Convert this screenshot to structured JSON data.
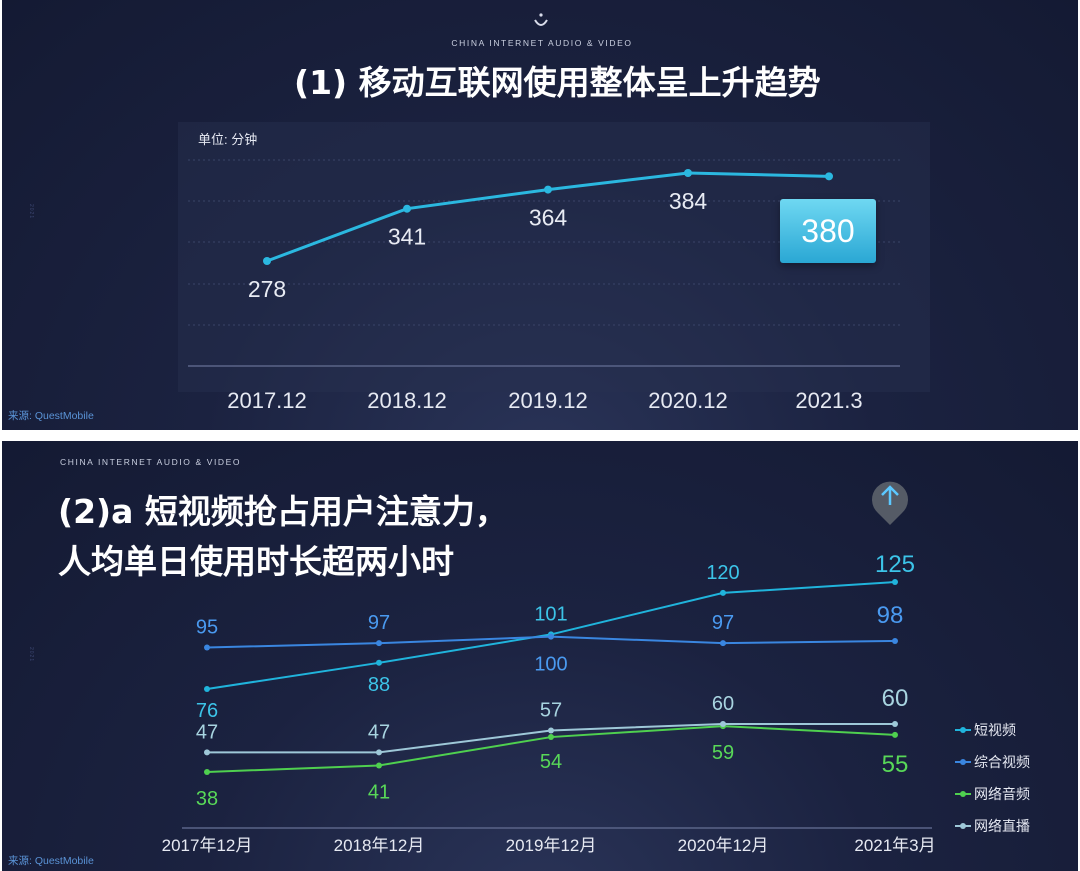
{
  "panel1": {
    "brand": "CHINA INTERNET AUDIO & VIDEO",
    "title": "(1) 移动互联网使用整体呈上升趋势",
    "source": "来源: QuestMobile",
    "side_mark": "2021",
    "chart_data": {
      "type": "line",
      "unit_label": "单位: 分钟",
      "categories": [
        "2017.12",
        "2018.12",
        "2019.12",
        "2020.12",
        "2021.3"
      ],
      "series": [
        {
          "values": [
            278,
            341,
            364,
            384,
            380
          ],
          "color": "#2bb8e0"
        }
      ],
      "highlight": {
        "index": 4,
        "label": "380"
      },
      "data_labels": [
        "278",
        "341",
        "364",
        "384",
        "380"
      ],
      "ylim": [
        200,
        420
      ],
      "grid": true
    }
  },
  "panel2": {
    "brand": "CHINA INTERNET AUDIO & VIDEO",
    "title_line1": "(2)a 短视频抢占用户注意力，",
    "title_line2": "人均单日使用时长超两小时",
    "source": "来源: QuestMobile",
    "side_mark": "2021",
    "up_marker_icon": "arrow-up-icon",
    "chart_data": {
      "type": "line",
      "categories": [
        "2017年12月",
        "2018年12月",
        "2019年12月",
        "2020年12月",
        "2021年3月"
      ],
      "series": [
        {
          "name": "短视频",
          "values": [
            76,
            88,
            101,
            120,
            125
          ],
          "color": "#20b4dc",
          "label_color": "#3cc4e8"
        },
        {
          "name": "综合视频",
          "values": [
            95,
            97,
            100,
            97,
            98
          ],
          "color": "#3a86e0",
          "label_color": "#4a9af0"
        },
        {
          "name": "网络音频",
          "values": [
            38,
            41,
            54,
            59,
            55
          ],
          "color": "#4fd04f",
          "label_color": "#58d858"
        },
        {
          "name": "网络直播",
          "values": [
            47,
            47,
            57,
            60,
            60
          ],
          "color": "#9ec8d8",
          "label_color": "#a8d4e0"
        }
      ],
      "legend_position": "right",
      "ylim": [
        30,
        130
      ]
    }
  }
}
